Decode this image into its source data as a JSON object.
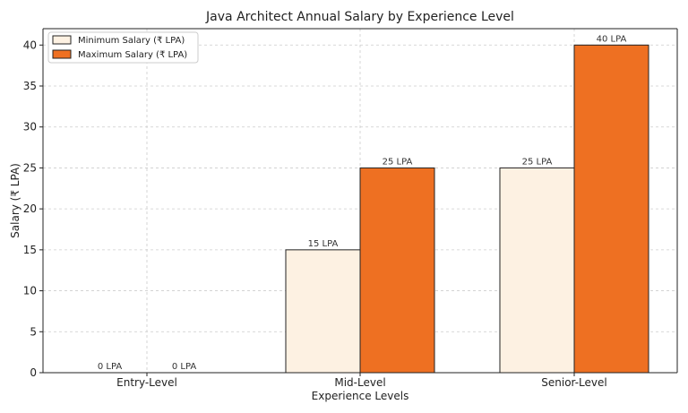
{
  "chart_data": {
    "type": "bar",
    "title": "Java Architect Annual Salary by Experience Level",
    "xlabel": "Experience Levels",
    "ylabel": "Salary (₹ LPA)",
    "categories": [
      "Entry-Level",
      "Mid-Level",
      "Senior-Level"
    ],
    "series": [
      {
        "name": "Minimum Salary (₹ LPA)",
        "values": [
          0,
          15,
          25
        ],
        "color": "#fdf1e2",
        "labels": [
          "0 LPA",
          "15 LPA",
          "25 LPA"
        ]
      },
      {
        "name": "Maximum Salary (₹ LPA)",
        "values": [
          0,
          25,
          40
        ],
        "color": "#ee7022",
        "labels": [
          "0 LPA",
          "25 LPA",
          "40 LPA"
        ]
      }
    ],
    "ylim": [
      0,
      42
    ],
    "yticks": [
      0,
      5,
      10,
      15,
      20,
      25,
      30,
      35,
      40
    ],
    "grid": true,
    "legend": "top-left"
  }
}
